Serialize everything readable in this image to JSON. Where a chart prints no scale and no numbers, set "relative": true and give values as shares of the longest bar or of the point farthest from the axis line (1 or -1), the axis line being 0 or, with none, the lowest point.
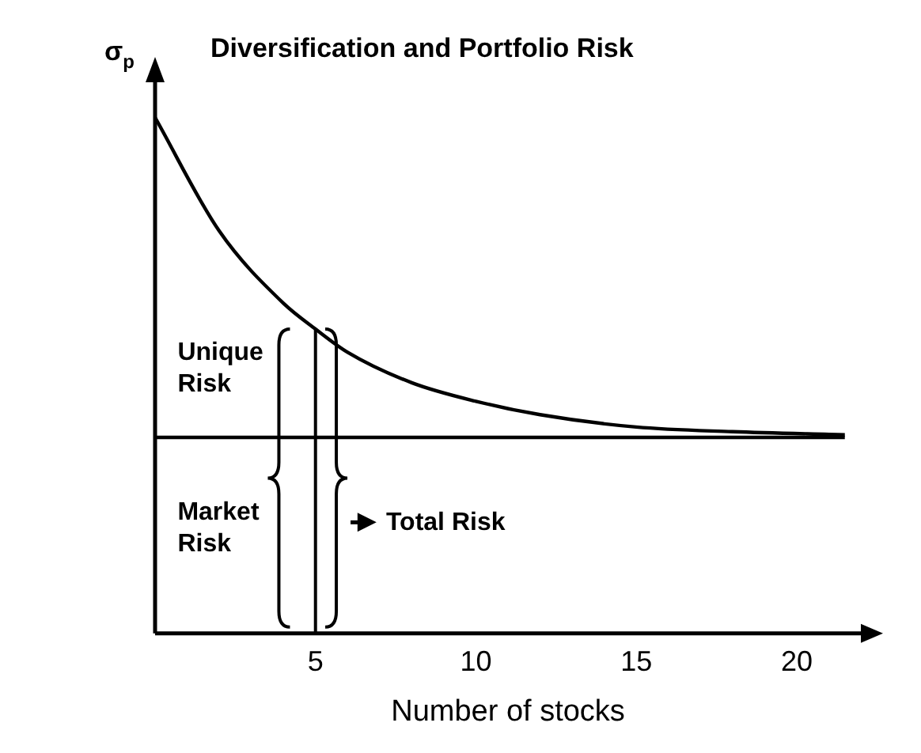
{
  "chart_data": {
    "type": "line",
    "title": "Diversification and Portfolio Risk",
    "xlabel": "Number of stocks",
    "ylabel": "σ$_{p}$",
    "relative": true,
    "xlim": [
      0,
      22
    ],
    "xticks": [
      5,
      10,
      15,
      20
    ],
    "grid": false,
    "legend": false,
    "marker": "none",
    "line_style": "solid",
    "series": [
      {
        "color": "#000000",
        "x": [
          0,
          2,
          4,
          5,
          6,
          8,
          10,
          12,
          15,
          18,
          21.5
        ],
        "values": [
          1.0,
          0.78,
          0.64,
          0.59,
          0.545,
          0.486,
          0.45,
          0.424,
          0.4,
          0.391,
          0.385
        ]
      },
      {
        "color": "#000000",
        "x": [
          0,
          21.5
        ],
        "values": [
          0.38,
          0.38
        ]
      }
    ],
    "ref_lines": [
      {
        "axis": "x",
        "value": 5
      }
    ],
    "annotations": [
      "Unique Risk",
      "Market Risk",
      "Total Risk"
    ]
  }
}
